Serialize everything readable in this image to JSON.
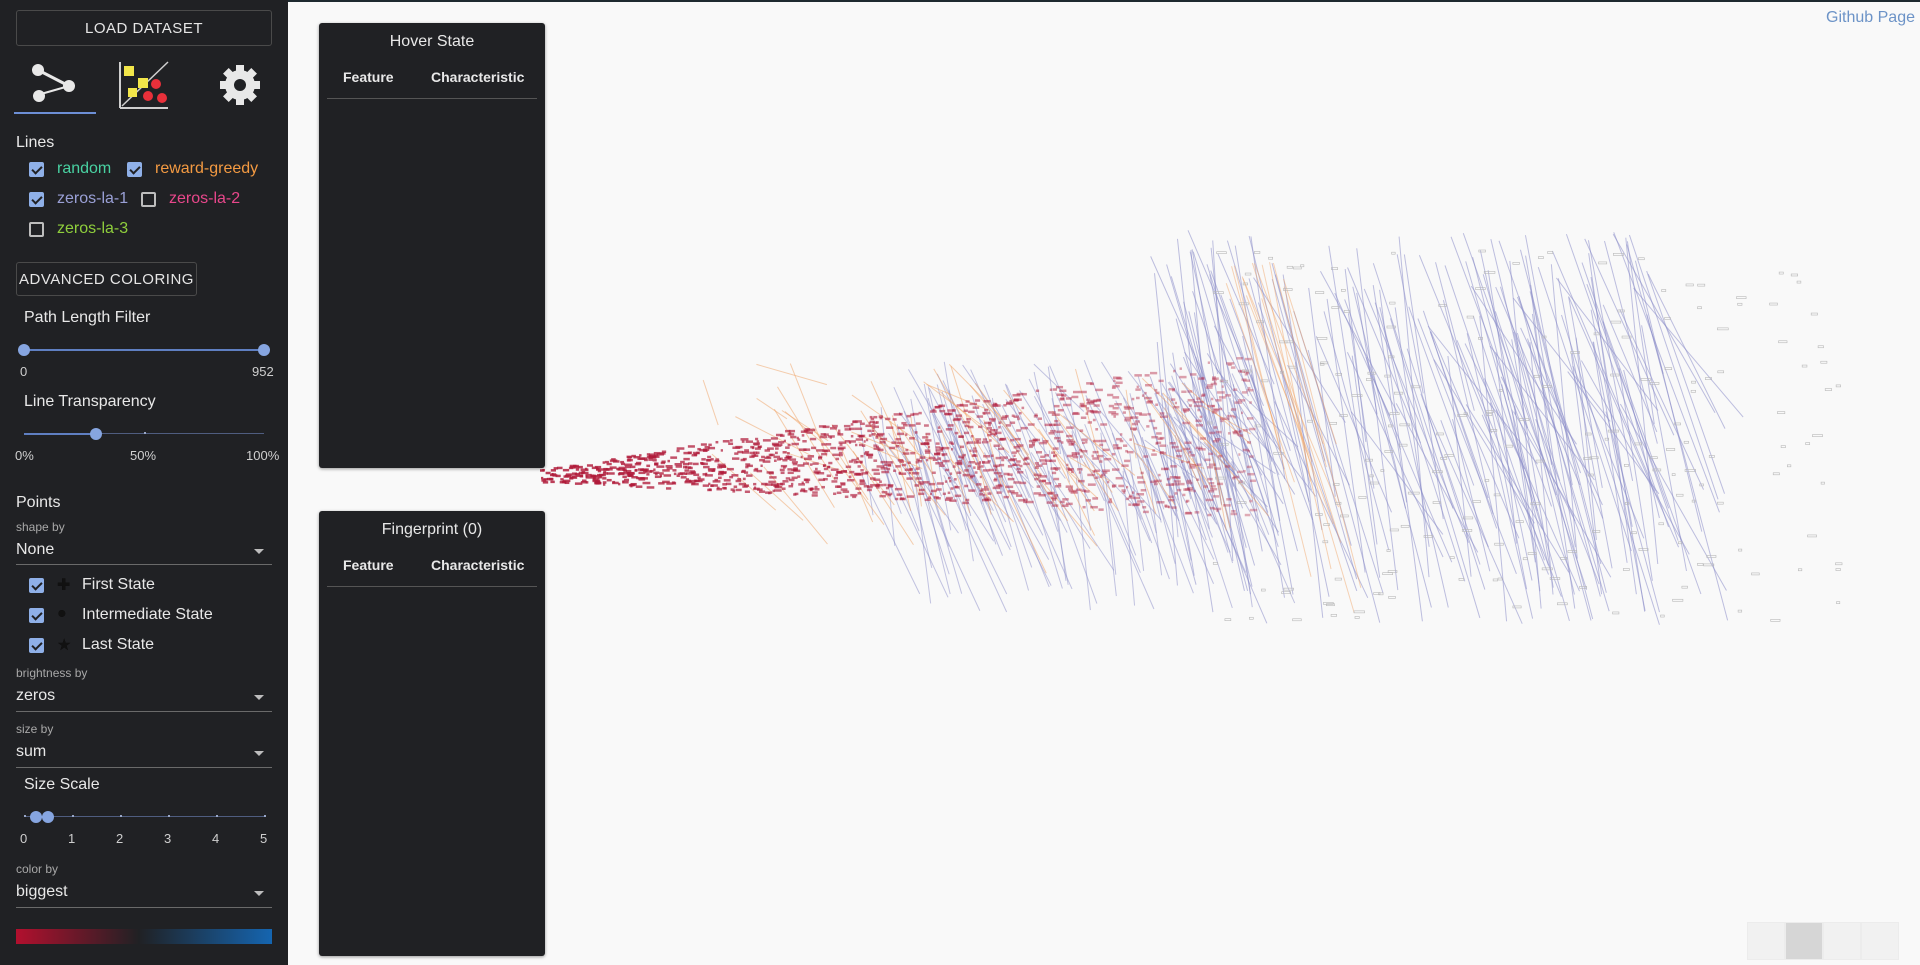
{
  "header": {
    "github_link": "Github Page"
  },
  "sidebar": {
    "load_button": "LOAD DATASET",
    "tabs": [
      {
        "icon": "graph-lines-icon",
        "active": true
      },
      {
        "icon": "scatter-points-icon",
        "active": false
      },
      {
        "icon": "gear-icon",
        "active": false
      }
    ],
    "lines": {
      "title": "Lines",
      "items": [
        {
          "label": "random",
          "checked": true,
          "color": "#49d2a2"
        },
        {
          "label": "reward-greedy",
          "checked": true,
          "color": "#f39a42"
        },
        {
          "label": "zeros-la-1",
          "checked": true,
          "color": "#9aa0d6"
        },
        {
          "label": "zeros-la-2",
          "checked": false,
          "color": "#e8478b"
        },
        {
          "label": "zeros-la-3",
          "checked": false,
          "color": "#8fcf3c"
        }
      ]
    },
    "advanced_button": "ADVANCED COLORING",
    "path_length": {
      "title": "Path Length Filter",
      "min": "0",
      "max": "952",
      "low": 0,
      "high": 952
    },
    "transparency": {
      "title": "Line Transparency",
      "ticks": [
        "0%",
        "50%",
        "100%"
      ],
      "value": 0.3
    },
    "points": {
      "title": "Points",
      "shape_by": {
        "label": "shape by",
        "value": "None"
      },
      "states": [
        {
          "label": "First State",
          "checked": true,
          "icon": "cross-icon"
        },
        {
          "label": "Intermediate State",
          "checked": true,
          "icon": "circle-icon"
        },
        {
          "label": "Last State",
          "checked": true,
          "icon": "star-icon"
        }
      ],
      "brightness_by": {
        "label": "brightness by",
        "value": "zeros"
      },
      "size_by": {
        "label": "size by",
        "value": "sum"
      }
    },
    "size_scale": {
      "title": "Size Scale",
      "ticks": [
        "0",
        "1",
        "2",
        "3",
        "4",
        "5"
      ],
      "low": 0.25,
      "high": 0.5
    },
    "color_by": {
      "label": "color by",
      "value": "biggest"
    },
    "gradient": {
      "from": "#b2102e",
      "via": "#202124",
      "to": "#1565b0"
    }
  },
  "hover_panel": {
    "title": "Hover State",
    "col_feature": "Feature",
    "col_characteristic": "Characteristic"
  },
  "fingerprint_panel": {
    "title": "Fingerprint (0)",
    "col_feature": "Feature",
    "col_characteristic": "Characteristic"
  },
  "toolbar": {
    "tools": [
      "zoom-fit-icon",
      "pan-icon",
      "select-icon",
      "minus-icon"
    ],
    "active": 1
  },
  "colors": {
    "zeros_line": "#8a8cc8",
    "reward_line": "#f0a060",
    "point_red": "#b01b3a"
  }
}
